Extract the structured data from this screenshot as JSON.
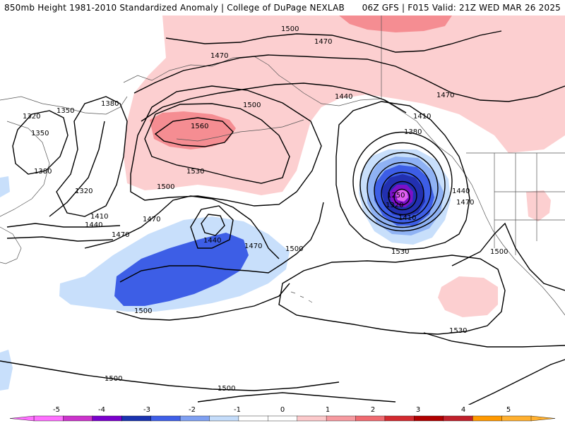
{
  "header": {
    "title_left": "850mb Height 1981-2010 Standardized Anomaly | College of DuPage NEXLAB",
    "title_right": "06Z GFS | F015 Valid: 21Z WED MAR 26 2025"
  },
  "contour_labels": {
    "l1500_top": "1500",
    "l1470_top": "1470",
    "l1470_ak": "1470",
    "l1470_ne": "1470",
    "l1440_bc": "1440",
    "l1410_coast": "1410",
    "l1380_coast": "1380",
    "l1320_w": "1320",
    "l1350_w": "1350",
    "l1380_w": "1380",
    "l1350_w2": "1350",
    "l1380_w2": "1380",
    "l1320_w2": "1320",
    "l1560_c": "1560",
    "l1500_c": "1500",
    "l1530_c": "1530",
    "l1500_c2": "1500",
    "l1410_sw": "1410",
    "l1440_sw": "1440",
    "l1470_sw": "1470",
    "l1470_c": "1470",
    "l1440_c": "1440",
    "l1470_c2": "1470",
    "l1500_c3": "1500",
    "l1250_low": "1250",
    "l1320_low": "1320",
    "l1410_low": "1410",
    "l1530_low": "1530",
    "l1440_e": "1440",
    "l1470_e": "1470",
    "l1500_e": "1500",
    "l1530_se": "1530",
    "l1500_sw": "1500",
    "l1500_s": "1500",
    "l1500_s2": "1500"
  },
  "colorbar": {
    "labels": [
      "-5",
      "-4",
      "-3",
      "-2",
      "-1",
      "0",
      "1",
      "2",
      "3",
      "4",
      "5"
    ],
    "colors": [
      "#ff6fff",
      "#cc33cc",
      "#7a00cc",
      "#1a33b0",
      "#3f5fe8",
      "#7fa0f2",
      "#c4dcfa",
      "#ffffff",
      "#ffffff",
      "#fcc9cb",
      "#f79aa0",
      "#f06a70",
      "#d32a30",
      "#b00000",
      "#c0202b",
      "#ff9900",
      "#ffb030"
    ]
  },
  "legend_colors": {
    "neg_1": "#c8dffb",
    "neg_2": "#8fb2f4",
    "neg_3": "#3d5ee6",
    "neg_4": "#2230b0",
    "neg_5": "#7b10c8",
    "neg_6": "#e060f0",
    "pos_1": "#fccfd0",
    "pos_2": "#f58d92",
    "pos_3": "#e95c63"
  }
}
